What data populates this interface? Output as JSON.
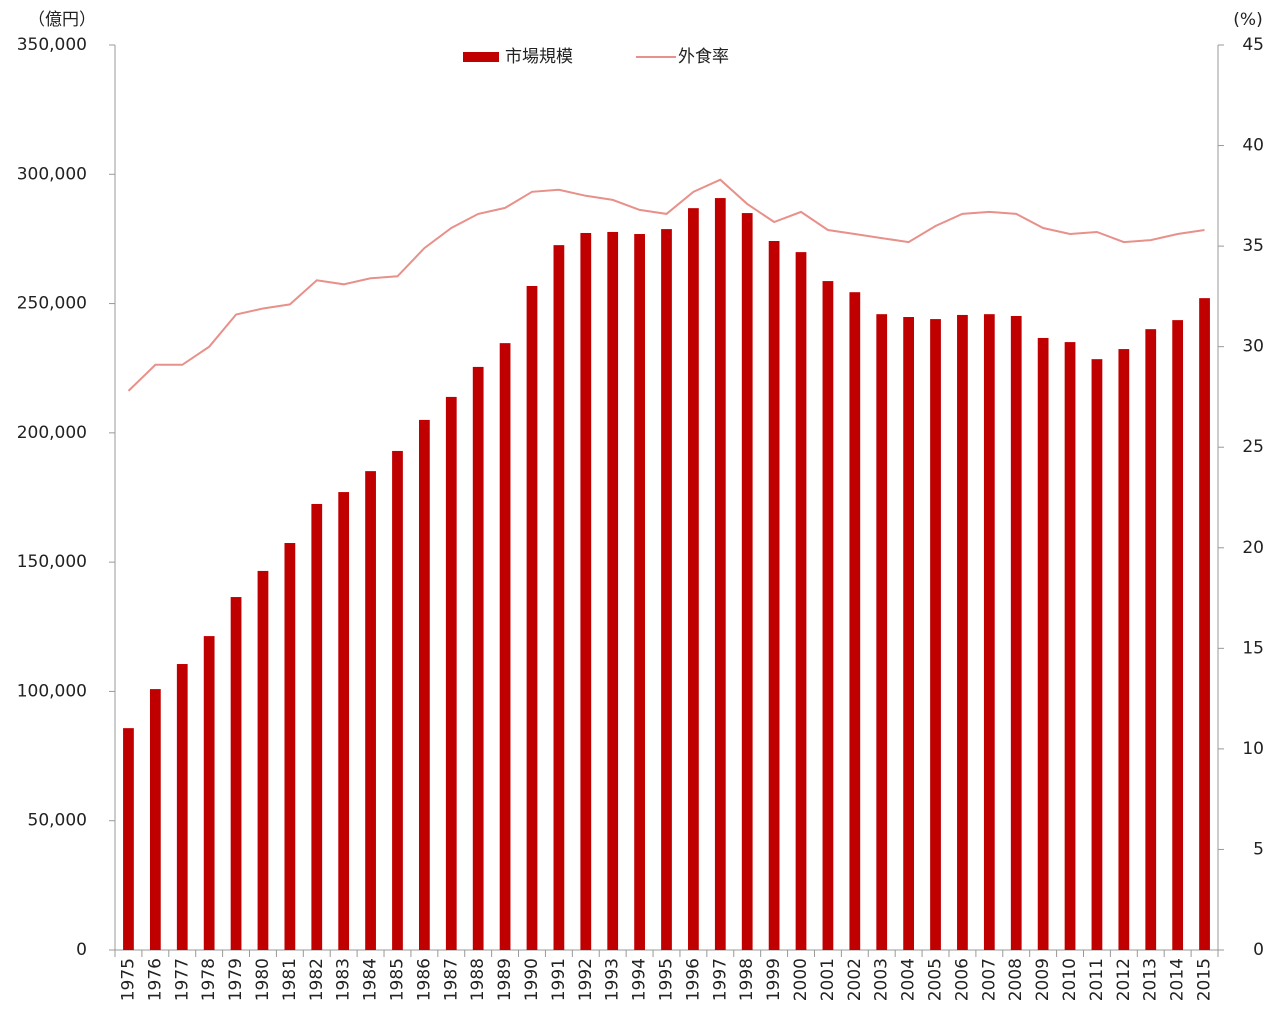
{
  "chart_data": {
    "type": "bar-line",
    "ylabel": "（億円）",
    "y2label": "(%)",
    "categories": [
      "1975",
      "1976",
      "1977",
      "1978",
      "1979",
      "1980",
      "1981",
      "1982",
      "1983",
      "1984",
      "1985",
      "1986",
      "1987",
      "1988",
      "1989",
      "1990",
      "1991",
      "1992",
      "1993",
      "1994",
      "1995",
      "1996",
      "1997",
      "1998",
      "1999",
      "2000",
      "2001",
      "2002",
      "2003",
      "2004",
      "2005",
      "2006",
      "2007",
      "2008",
      "2009",
      "2010",
      "2011",
      "2012",
      "2013",
      "2014",
      "2015"
    ],
    "series": [
      {
        "name": "市場規模",
        "type": "bar",
        "color": "#c00000",
        "values": [
          85800,
          100900,
          110600,
          121400,
          136500,
          146600,
          157400,
          172500,
          177100,
          185200,
          193000,
          205000,
          213900,
          225500,
          234700,
          256800,
          272600,
          277300,
          277700,
          276900,
          278800,
          286900,
          290800,
          285000,
          274200,
          269900,
          258700,
          254400,
          245900,
          244800,
          244000,
          245600,
          245900,
          245200,
          236700,
          235100,
          228500,
          232400,
          240100,
          243600,
          252100
        ]
      },
      {
        "name": "外食率",
        "type": "line",
        "axis": "y2",
        "color": "#e8908a",
        "values": [
          27.8,
          29.1,
          29.1,
          30.0,
          31.6,
          31.9,
          32.1,
          33.3,
          33.1,
          33.4,
          33.5,
          34.9,
          35.9,
          36.6,
          36.9,
          37.7,
          37.8,
          37.5,
          37.3,
          36.8,
          36.6,
          37.7,
          38.3,
          37.1,
          36.2,
          36.7,
          35.8,
          35.6,
          35.4,
          35.2,
          36.0,
          36.6,
          36.7,
          36.6,
          35.9,
          35.6,
          35.7,
          35.2,
          35.3,
          35.6,
          35.8
        ]
      }
    ],
    "ylim": [
      0,
      350000
    ],
    "yticks": [
      0,
      {
        "value": 50000,
        "label": "50,000"
      },
      {
        "value": 100000,
        "label": "100,000"
      },
      {
        "value": 150000,
        "label": "150,000"
      },
      {
        "value": 200000,
        "label": "200,000"
      },
      {
        "value": 250000,
        "label": "250,000"
      },
      {
        "value": 300000,
        "label": "300,000"
      },
      {
        "value": 350000,
        "label": "350,000"
      }
    ],
    "y2lim": [
      0,
      45
    ],
    "y2ticks": [
      0,
      5,
      10,
      15,
      20,
      25,
      30,
      35,
      40,
      45
    ],
    "legend": "top",
    "grid": false
  }
}
